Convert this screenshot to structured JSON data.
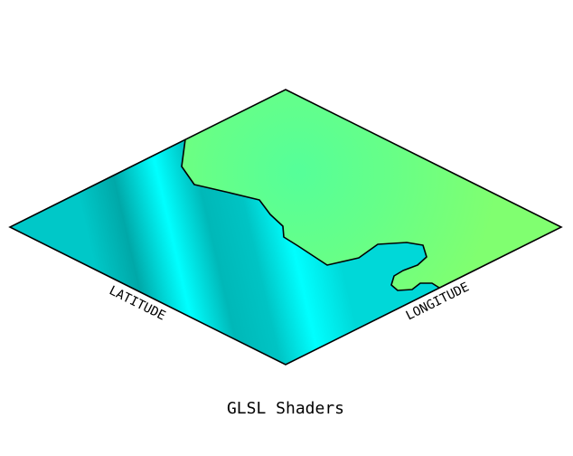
{
  "scene": {
    "caption": "GLSL Shaders",
    "axis_labels": {
      "latitude": "LATITUDE",
      "longitude": "LONGITUDE"
    }
  },
  "colors": {
    "land_light": "#80ff70",
    "land_mid": "#55ff99",
    "water_bright": "#00ffee",
    "water_dark": "#00b3b3",
    "outline": "#000000"
  }
}
